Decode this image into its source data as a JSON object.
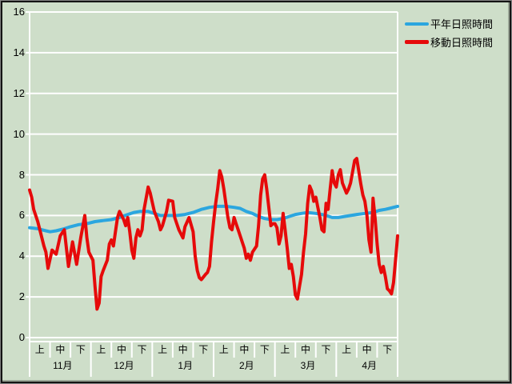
{
  "window": {
    "background": "#cedec9"
  },
  "legend": {
    "items": [
      {
        "label": "平年日照時間",
        "color": "#2BA6DF"
      },
      {
        "label": "移動日照時間",
        "color": "#E60A0A"
      }
    ]
  },
  "colors": {
    "background": "#cedec9",
    "grid": "#ffffff",
    "text": "#000000"
  },
  "chart_data": {
    "type": "line",
    "title": "",
    "xlabel": "",
    "ylabel": "",
    "grid": true,
    "legend_position": "top-right-outside",
    "x_axis": {
      "unit": "days from Nov 1 (0) to Apr 30 (180)",
      "months": [
        "11月",
        "12月",
        "1月",
        "2月",
        "3月",
        "4月"
      ],
      "decade_labels": [
        "上",
        "中",
        "下"
      ]
    },
    "y_axis": {
      "min": 0,
      "max": 16,
      "step": 2,
      "ticks": [
        0,
        2,
        4,
        6,
        8,
        10,
        12,
        14,
        16
      ]
    },
    "series": [
      {
        "name": "平年日照時間",
        "color": "#2BA6DF",
        "width": 4,
        "points": [
          [
            0,
            5.4
          ],
          [
            4,
            5.35
          ],
          [
            8,
            5.25
          ],
          [
            10,
            5.2
          ],
          [
            13,
            5.25
          ],
          [
            17,
            5.35
          ],
          [
            20,
            5.45
          ],
          [
            24,
            5.55
          ],
          [
            28,
            5.6
          ],
          [
            32,
            5.7
          ],
          [
            36,
            5.75
          ],
          [
            40,
            5.8
          ],
          [
            44,
            5.9
          ],
          [
            48,
            6.05
          ],
          [
            51,
            6.15
          ],
          [
            54,
            6.2
          ],
          [
            58,
            6.2
          ],
          [
            61,
            6.1
          ],
          [
            64,
            6.0
          ],
          [
            68,
            6.0
          ],
          [
            72,
            6.0
          ],
          [
            76,
            6.05
          ],
          [
            80,
            6.15
          ],
          [
            84,
            6.3
          ],
          [
            88,
            6.4
          ],
          [
            92,
            6.45
          ],
          [
            96,
            6.45
          ],
          [
            100,
            6.4
          ],
          [
            103,
            6.35
          ],
          [
            106,
            6.2
          ],
          [
            109,
            6.1
          ],
          [
            112,
            5.95
          ],
          [
            115,
            5.85
          ],
          [
            118,
            5.8
          ],
          [
            121,
            5.8
          ],
          [
            124,
            5.85
          ],
          [
            127,
            5.95
          ],
          [
            130,
            6.05
          ],
          [
            133,
            6.1
          ],
          [
            136,
            6.15
          ],
          [
            140,
            6.1
          ],
          [
            143,
            6.05
          ],
          [
            145,
            6.0
          ],
          [
            148,
            5.9
          ],
          [
            151,
            5.9
          ],
          [
            154,
            5.95
          ],
          [
            157,
            6.0
          ],
          [
            160,
            6.05
          ],
          [
            164,
            6.1
          ],
          [
            168,
            6.15
          ],
          [
            171,
            6.25
          ],
          [
            174,
            6.3
          ],
          [
            176,
            6.35
          ],
          [
            178,
            6.4
          ],
          [
            180,
            6.45
          ]
        ]
      },
      {
        "name": "移動日照時間",
        "color": "#E60A0A",
        "width": 4,
        "points": [
          [
            0,
            7.25
          ],
          [
            1,
            6.9
          ],
          [
            2,
            6.3
          ],
          [
            4,
            5.7
          ],
          [
            5,
            5.3
          ],
          [
            7,
            4.5
          ],
          [
            8,
            4.2
          ],
          [
            9,
            3.4
          ],
          [
            11,
            4.3
          ],
          [
            13,
            4.1
          ],
          [
            15,
            5.0
          ],
          [
            17,
            5.3
          ],
          [
            19,
            3.5
          ],
          [
            21,
            4.7
          ],
          [
            23,
            3.6
          ],
          [
            25,
            4.9
          ],
          [
            27,
            6.0
          ],
          [
            28,
            4.9
          ],
          [
            29,
            4.2
          ],
          [
            31,
            3.8
          ],
          [
            32,
            2.5
          ],
          [
            33,
            1.4
          ],
          [
            34,
            1.7
          ],
          [
            35,
            3.0
          ],
          [
            36,
            3.3
          ],
          [
            38,
            3.8
          ],
          [
            39,
            4.6
          ],
          [
            40,
            4.8
          ],
          [
            41,
            4.5
          ],
          [
            42,
            5.2
          ],
          [
            43,
            5.9
          ],
          [
            44,
            6.2
          ],
          [
            46,
            5.8
          ],
          [
            47,
            5.5
          ],
          [
            48,
            5.9
          ],
          [
            49,
            5.2
          ],
          [
            50,
            4.3
          ],
          [
            51,
            3.9
          ],
          [
            52,
            4.9
          ],
          [
            53,
            5.3
          ],
          [
            54,
            5.0
          ],
          [
            55,
            5.3
          ],
          [
            56,
            6.3
          ],
          [
            58,
            7.4
          ],
          [
            59,
            7.1
          ],
          [
            61,
            6.2
          ],
          [
            63,
            5.7
          ],
          [
            64,
            5.3
          ],
          [
            65,
            5.5
          ],
          [
            67,
            6.2
          ],
          [
            68,
            6.75
          ],
          [
            70,
            6.7
          ],
          [
            71,
            5.9
          ],
          [
            72,
            5.6
          ],
          [
            73,
            5.3
          ],
          [
            75,
            4.9
          ],
          [
            76,
            5.45
          ],
          [
            78,
            5.9
          ],
          [
            80,
            5.2
          ],
          [
            81,
            4.0
          ],
          [
            82,
            3.3
          ],
          [
            83,
            2.95
          ],
          [
            84,
            2.85
          ],
          [
            86,
            3.1
          ],
          [
            87,
            3.2
          ],
          [
            88,
            3.5
          ],
          [
            89,
            4.7
          ],
          [
            90,
            5.7
          ],
          [
            91,
            6.6
          ],
          [
            92,
            7.3
          ],
          [
            93,
            8.2
          ],
          [
            94,
            7.9
          ],
          [
            95,
            7.3
          ],
          [
            96,
            6.6
          ],
          [
            97,
            5.9
          ],
          [
            98,
            5.4
          ],
          [
            99,
            5.3
          ],
          [
            100,
            5.9
          ],
          [
            101,
            5.6
          ],
          [
            102,
            5.3
          ],
          [
            103,
            5.0
          ],
          [
            105,
            4.4
          ],
          [
            106,
            3.9
          ],
          [
            107,
            4.1
          ],
          [
            108,
            3.8
          ],
          [
            109,
            4.2
          ],
          [
            111,
            4.5
          ],
          [
            112,
            5.5
          ],
          [
            113,
            7.0
          ],
          [
            114,
            7.8
          ],
          [
            115,
            8.0
          ],
          [
            116,
            7.3
          ],
          [
            117,
            6.4
          ],
          [
            118,
            5.5
          ],
          [
            119,
            5.6
          ],
          [
            120,
            5.6
          ],
          [
            121,
            5.4
          ],
          [
            122,
            4.6
          ],
          [
            123,
            5.0
          ],
          [
            124,
            6.1
          ],
          [
            125,
            5.3
          ],
          [
            126,
            4.4
          ],
          [
            127,
            3.4
          ],
          [
            128,
            3.6
          ],
          [
            129,
            3.0
          ],
          [
            130,
            2.1
          ],
          [
            131,
            1.9
          ],
          [
            132,
            2.5
          ],
          [
            133,
            3.1
          ],
          [
            134,
            4.2
          ],
          [
            135,
            5.1
          ],
          [
            136,
            6.6
          ],
          [
            137,
            7.45
          ],
          [
            138,
            7.2
          ],
          [
            139,
            6.7
          ],
          [
            140,
            6.9
          ],
          [
            141,
            6.4
          ],
          [
            142,
            5.9
          ],
          [
            143,
            5.3
          ],
          [
            144,
            5.2
          ],
          [
            145,
            6.6
          ],
          [
            146,
            6.3
          ],
          [
            147,
            7.3
          ],
          [
            148,
            8.2
          ],
          [
            149,
            7.6
          ],
          [
            150,
            7.4
          ],
          [
            151,
            8.0
          ],
          [
            152,
            8.25
          ],
          [
            153,
            7.6
          ],
          [
            155,
            7.1
          ],
          [
            156,
            7.3
          ],
          [
            157,
            7.6
          ],
          [
            159,
            8.7
          ],
          [
            160,
            8.8
          ],
          [
            161,
            8.2
          ],
          [
            162,
            7.55
          ],
          [
            163,
            7.0
          ],
          [
            164,
            6.7
          ],
          [
            165,
            6.0
          ],
          [
            166,
            4.8
          ],
          [
            167,
            4.2
          ],
          [
            168,
            6.85
          ],
          [
            169,
            5.85
          ],
          [
            170,
            4.6
          ],
          [
            171,
            3.6
          ],
          [
            172,
            3.2
          ],
          [
            173,
            3.5
          ],
          [
            174,
            3.0
          ],
          [
            175,
            2.4
          ],
          [
            176,
            2.3
          ],
          [
            177,
            2.15
          ],
          [
            178,
            2.7
          ],
          [
            179,
            3.8
          ],
          [
            180,
            5.0
          ]
        ]
      }
    ]
  }
}
